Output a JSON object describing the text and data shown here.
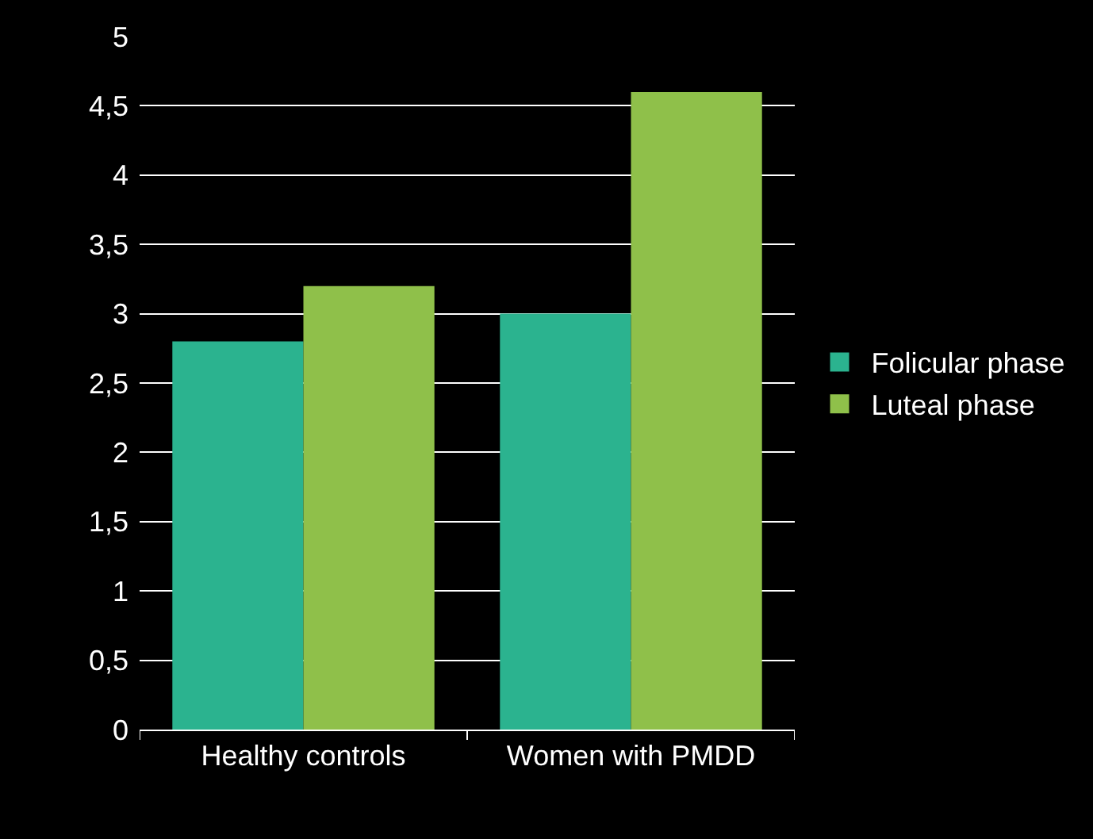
{
  "chart_data": {
    "type": "bar",
    "categories": [
      "Healthy controls",
      "Women with PMDD"
    ],
    "series": [
      {
        "name": "Folicular phase",
        "color": "#2bb38f",
        "values": [
          2.8,
          3.0
        ]
      },
      {
        "name": "Luteal phase",
        "color": "#8fc04a",
        "values": [
          3.2,
          4.6
        ]
      }
    ],
    "ylim": [
      0,
      5
    ],
    "yticks": [
      0,
      {
        "value": 0.5,
        "label": "0,5"
      },
      1,
      {
        "value": 1.5,
        "label": "1,5"
      },
      2,
      {
        "value": 2.5,
        "label": "2,5"
      },
      3,
      {
        "value": 3.5,
        "label": "3,5"
      },
      4,
      {
        "value": 4.5,
        "label": "4,5"
      },
      5
    ],
    "grid": "y",
    "legend": "right"
  }
}
